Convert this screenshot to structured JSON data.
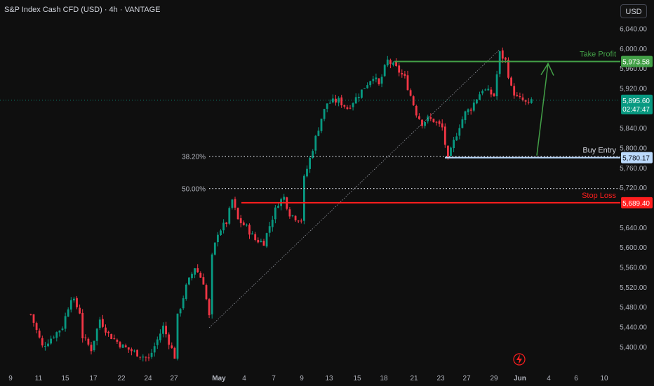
{
  "header": {
    "title": "S&P Index Cash CFD (USD) · 4h · VANTAGE",
    "currency": "USD"
  },
  "colors": {
    "background": "#0f0f0f",
    "up": "#089981",
    "down": "#f23645",
    "text": "#b2b5be",
    "take_profit": "#43a047",
    "stop_loss": "#ff1e1e",
    "entry": "#bbd9fb",
    "current_price": "#089981"
  },
  "chart_data": {
    "type": "candlestick",
    "x_axis": {
      "ticks": [
        "9",
        "11",
        "15",
        "17",
        "22",
        "24",
        "27",
        "May",
        "4",
        "7",
        "9",
        "13",
        "15",
        "18",
        "21",
        "23",
        "27",
        "29",
        "Jun",
        "4",
        "6",
        "10"
      ]
    },
    "y_axis": {
      "ylim": [
        5380,
        6055
      ],
      "ticks": [
        "5,400.00",
        "5,440.00",
        "5,480.00",
        "5,520.00",
        "5,560.00",
        "5,600.00",
        "5,640.00",
        "5,720.00",
        "5,760.00",
        "5,800.00",
        "5,840.00",
        "5,920.00",
        "5,960.00",
        "6,000.00",
        "6,040.00"
      ]
    },
    "price_path": [
      {
        "t": 9,
        "p": 5465
      },
      {
        "t": 13,
        "p": 5400
      },
      {
        "t": 20,
        "p": 5440
      },
      {
        "t": 23,
        "p": 5500
      },
      {
        "t": 26,
        "p": 5470
      },
      {
        "t": 27,
        "p": 5420
      },
      {
        "t": 30,
        "p": 5395
      },
      {
        "t": 33,
        "p": 5455
      },
      {
        "t": 36,
        "p": 5425
      },
      {
        "t": 41,
        "p": 5400
      },
      {
        "t": 50,
        "p": 5375
      },
      {
        "t": 55,
        "p": 5440
      },
      {
        "t": 59,
        "p": 5380
      },
      {
        "t": 60,
        "p": 5460
      },
      {
        "t": 63,
        "p": 5520
      },
      {
        "t": 66,
        "p": 5560
      },
      {
        "t": 69,
        "p": 5530
      },
      {
        "t": 71,
        "p": 5460
      },
      {
        "t": 72,
        "p": 5580
      },
      {
        "t": 74,
        "p": 5630
      },
      {
        "t": 77,
        "p": 5650
      },
      {
        "t": 79,
        "p": 5695
      },
      {
        "t": 81,
        "p": 5655
      },
      {
        "t": 84,
        "p": 5640
      },
      {
        "t": 87,
        "p": 5615
      },
      {
        "t": 90,
        "p": 5610
      },
      {
        "t": 93,
        "p": 5660
      },
      {
        "t": 95,
        "p": 5690
      },
      {
        "t": 97,
        "p": 5700
      },
      {
        "t": 99,
        "p": 5668
      },
      {
        "t": 101,
        "p": 5660
      },
      {
        "t": 103,
        "p": 5655
      },
      {
        "t": 104,
        "p": 5738
      },
      {
        "t": 106,
        "p": 5778
      },
      {
        "t": 108,
        "p": 5820
      },
      {
        "t": 110,
        "p": 5860
      },
      {
        "t": 112,
        "p": 5890
      },
      {
        "t": 116,
        "p": 5895
      },
      {
        "t": 119,
        "p": 5880
      },
      {
        "t": 122,
        "p": 5900
      },
      {
        "t": 124,
        "p": 5915
      },
      {
        "t": 126,
        "p": 5930
      },
      {
        "t": 128,
        "p": 5945
      },
      {
        "t": 130,
        "p": 5925
      },
      {
        "t": 132,
        "p": 5960
      },
      {
        "t": 133,
        "p": 5975
      },
      {
        "t": 136,
        "p": 5960
      },
      {
        "t": 139,
        "p": 5940
      },
      {
        "t": 141,
        "p": 5905
      },
      {
        "t": 143,
        "p": 5870
      },
      {
        "t": 145,
        "p": 5850
      },
      {
        "t": 147,
        "p": 5858
      },
      {
        "t": 149,
        "p": 5855
      },
      {
        "t": 152,
        "p": 5840
      },
      {
        "t": 154,
        "p": 5775
      },
      {
        "t": 156,
        "p": 5812
      },
      {
        "t": 158,
        "p": 5845
      },
      {
        "t": 160,
        "p": 5870
      },
      {
        "t": 162,
        "p": 5880
      },
      {
        "t": 164,
        "p": 5900
      },
      {
        "t": 166,
        "p": 5918
      },
      {
        "t": 168,
        "p": 5912
      },
      {
        "t": 170,
        "p": 5905
      },
      {
        "t": 172,
        "p": 5990
      },
      {
        "t": 174,
        "p": 5975
      },
      {
        "t": 176,
        "p": 5920
      },
      {
        "t": 178,
        "p": 5900
      },
      {
        "t": 180,
        "p": 5895
      },
      {
        "t": 182,
        "p": 5885
      },
      {
        "t": 183,
        "p": 5896
      }
    ],
    "fib_levels": [
      {
        "label": "38.20%",
        "price": 5783
      },
      {
        "label": "50.00%",
        "price": 5718
      }
    ],
    "levels": {
      "take_profit": {
        "label": "Take Profit",
        "price": 5973.58,
        "price_label": "5,973.58"
      },
      "buy_entry": {
        "label": "Buy Entry",
        "price": 5780.17,
        "price_label": "5,780.17"
      },
      "stop_loss": {
        "label": "Stop Loss",
        "price": 5689.4,
        "price_label": "5,689.40"
      }
    },
    "current_price": {
      "price": 5895.6,
      "label": "5,895.60",
      "countdown": "02:47:47"
    },
    "trendline": {
      "from_index": 71,
      "from_price": 5438,
      "to_index": 172,
      "to_price": 5998
    }
  }
}
